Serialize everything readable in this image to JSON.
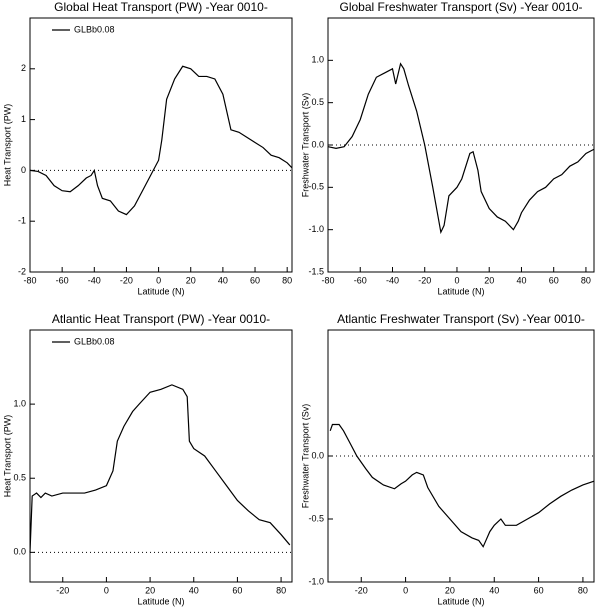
{
  "chart_data": [
    {
      "type": "line",
      "title": "Global Heat Transport (PW) -Year 0010-",
      "xlabel": "Latitude (N)",
      "ylabel": "Heat Transport (PW)",
      "xlim": [
        -80,
        83
      ],
      "xticks": [
        -80,
        -60,
        -40,
        -20,
        0,
        20,
        40,
        60,
        80
      ],
      "ylim": [
        -2,
        3
      ],
      "yticks": [
        -2,
        -1,
        0,
        1,
        2
      ],
      "zero_line": true,
      "legend": "upper left",
      "x": [
        -80,
        -75,
        -70,
        -65,
        -60,
        -55,
        -50,
        -45,
        -42,
        -40,
        -38,
        -35,
        -30,
        -25,
        -20,
        -15,
        -10,
        -5,
        0,
        2,
        5,
        10,
        15,
        20,
        25,
        30,
        35,
        40,
        45,
        50,
        55,
        60,
        65,
        70,
        75,
        80,
        83
      ],
      "series": [
        {
          "name": "GLBb0.08",
          "color": "#000000",
          "values": [
            0,
            -0.02,
            -0.1,
            -0.3,
            -0.4,
            -0.42,
            -0.3,
            -0.15,
            -0.1,
            0,
            -0.3,
            -0.55,
            -0.6,
            -0.8,
            -0.87,
            -0.7,
            -0.4,
            -0.1,
            0.2,
            0.6,
            1.4,
            1.8,
            2.05,
            2.0,
            1.85,
            1.85,
            1.8,
            1.5,
            0.8,
            0.75,
            0.65,
            0.55,
            0.45,
            0.3,
            0.25,
            0.15,
            0.05
          ]
        }
      ]
    },
    {
      "type": "line",
      "title": "Global Freshwater Transport (Sv) -Year 0010-",
      "xlabel": "Latitude (N)",
      "ylabel": "Freshwater Transport (Sv)",
      "xlim": [
        -80,
        85
      ],
      "xticks": [
        -80,
        -60,
        -40,
        -20,
        0,
        20,
        40,
        60,
        80
      ],
      "ylim": [
        -1.5,
        1.5
      ],
      "yticks": [
        {
          "value": -1.5,
          "label": "-1.5"
        },
        {
          "value": -1,
          "label": "-1.0"
        },
        {
          "value": -0.5,
          "label": "-0.5"
        },
        {
          "value": 0,
          "label": "0.0"
        },
        {
          "value": 0.5,
          "label": "0.5"
        },
        {
          "value": 1,
          "label": "1.0"
        }
      ],
      "zero_line": true,
      "x": [
        -80,
        -75,
        -70,
        -65,
        -60,
        -55,
        -50,
        -45,
        -40,
        -38,
        -35,
        -33,
        -30,
        -25,
        -20,
        -15,
        -10,
        -8,
        -5,
        0,
        3,
        8,
        10,
        13,
        15,
        20,
        25,
        30,
        35,
        38,
        40,
        45,
        50,
        55,
        60,
        65,
        70,
        75,
        80,
        85
      ],
      "series": [
        {
          "color": "#000000",
          "values": [
            -0.02,
            -0.04,
            -0.02,
            0.1,
            0.3,
            0.6,
            0.8,
            0.85,
            0.9,
            0.72,
            0.96,
            0.9,
            0.7,
            0.4,
            0.0,
            -0.5,
            -1.03,
            -0.95,
            -0.6,
            -0.5,
            -0.4,
            -0.1,
            -0.08,
            -0.3,
            -0.55,
            -0.75,
            -0.85,
            -0.9,
            -1.0,
            -0.9,
            -0.8,
            -0.65,
            -0.55,
            -0.5,
            -0.4,
            -0.35,
            -0.25,
            -0.2,
            -0.1,
            -0.05
          ]
        }
      ]
    },
    {
      "type": "line",
      "title": "Atlantic Heat Transport (PW) -Year 0010-",
      "xlabel": "Latitude (N)",
      "ylabel": "Heat Transport (PW)",
      "xlim": [
        -35,
        85
      ],
      "xticks": [
        -20,
        0,
        20,
        40,
        60,
        80
      ],
      "ylim": [
        -0.2,
        1.5
      ],
      "yticks": [
        {
          "value": 0,
          "label": "0.0"
        },
        {
          "value": 0.5,
          "label": "0.5"
        },
        {
          "value": 1,
          "label": "1.0"
        }
      ],
      "zero_line": true,
      "legend": "upper left",
      "x": [
        -35,
        -34,
        -32,
        -30,
        -28,
        -25,
        -20,
        -10,
        -5,
        0,
        3,
        5,
        8,
        10,
        12,
        15,
        20,
        25,
        30,
        35,
        37,
        38,
        40,
        45,
        50,
        55,
        60,
        65,
        70,
        75,
        80,
        84
      ],
      "series": [
        {
          "name": "GLBb0.08",
          "color": "#000000",
          "values": [
            0,
            0.38,
            0.4,
            0.37,
            0.4,
            0.38,
            0.4,
            0.4,
            0.42,
            0.45,
            0.55,
            0.75,
            0.85,
            0.9,
            0.95,
            1.0,
            1.08,
            1.1,
            1.13,
            1.1,
            1.05,
            0.75,
            0.7,
            0.65,
            0.55,
            0.45,
            0.35,
            0.28,
            0.22,
            0.2,
            0.12,
            0.05
          ]
        }
      ]
    },
    {
      "type": "line",
      "title": "Atlantic Freshwater Transport (Sv) -Year 0010-",
      "xlabel": "Latitude (N)",
      "ylabel": "Freshwater Transport (Sv)",
      "xlim": [
        -35,
        85
      ],
      "xticks": [
        -20,
        0,
        20,
        40,
        60,
        80
      ],
      "ylim": [
        -1,
        1
      ],
      "yticks": [
        {
          "value": -1,
          "label": "-1.0"
        },
        {
          "value": -0.5,
          "label": "-0.5"
        },
        {
          "value": 0,
          "label": "0.0"
        }
      ],
      "zero_line": true,
      "x": [
        -34,
        -33,
        -30,
        -28,
        -25,
        -22,
        -18,
        -15,
        -10,
        -5,
        -2,
        0,
        3,
        5,
        8,
        10,
        15,
        20,
        25,
        30,
        33,
        35,
        36,
        38,
        40,
        43,
        45,
        50,
        55,
        60,
        65,
        70,
        75,
        80,
        85
      ],
      "series": [
        {
          "color": "#000000",
          "values": [
            0.2,
            0.25,
            0.25,
            0.2,
            0.1,
            0.0,
            -0.1,
            -0.17,
            -0.23,
            -0.26,
            -0.22,
            -0.2,
            -0.15,
            -0.13,
            -0.15,
            -0.25,
            -0.4,
            -0.5,
            -0.6,
            -0.65,
            -0.67,
            -0.72,
            -0.68,
            -0.6,
            -0.55,
            -0.5,
            -0.55,
            -0.55,
            -0.5,
            -0.45,
            -0.38,
            -0.32,
            -0.27,
            -0.23,
            -0.2
          ]
        }
      ]
    }
  ]
}
